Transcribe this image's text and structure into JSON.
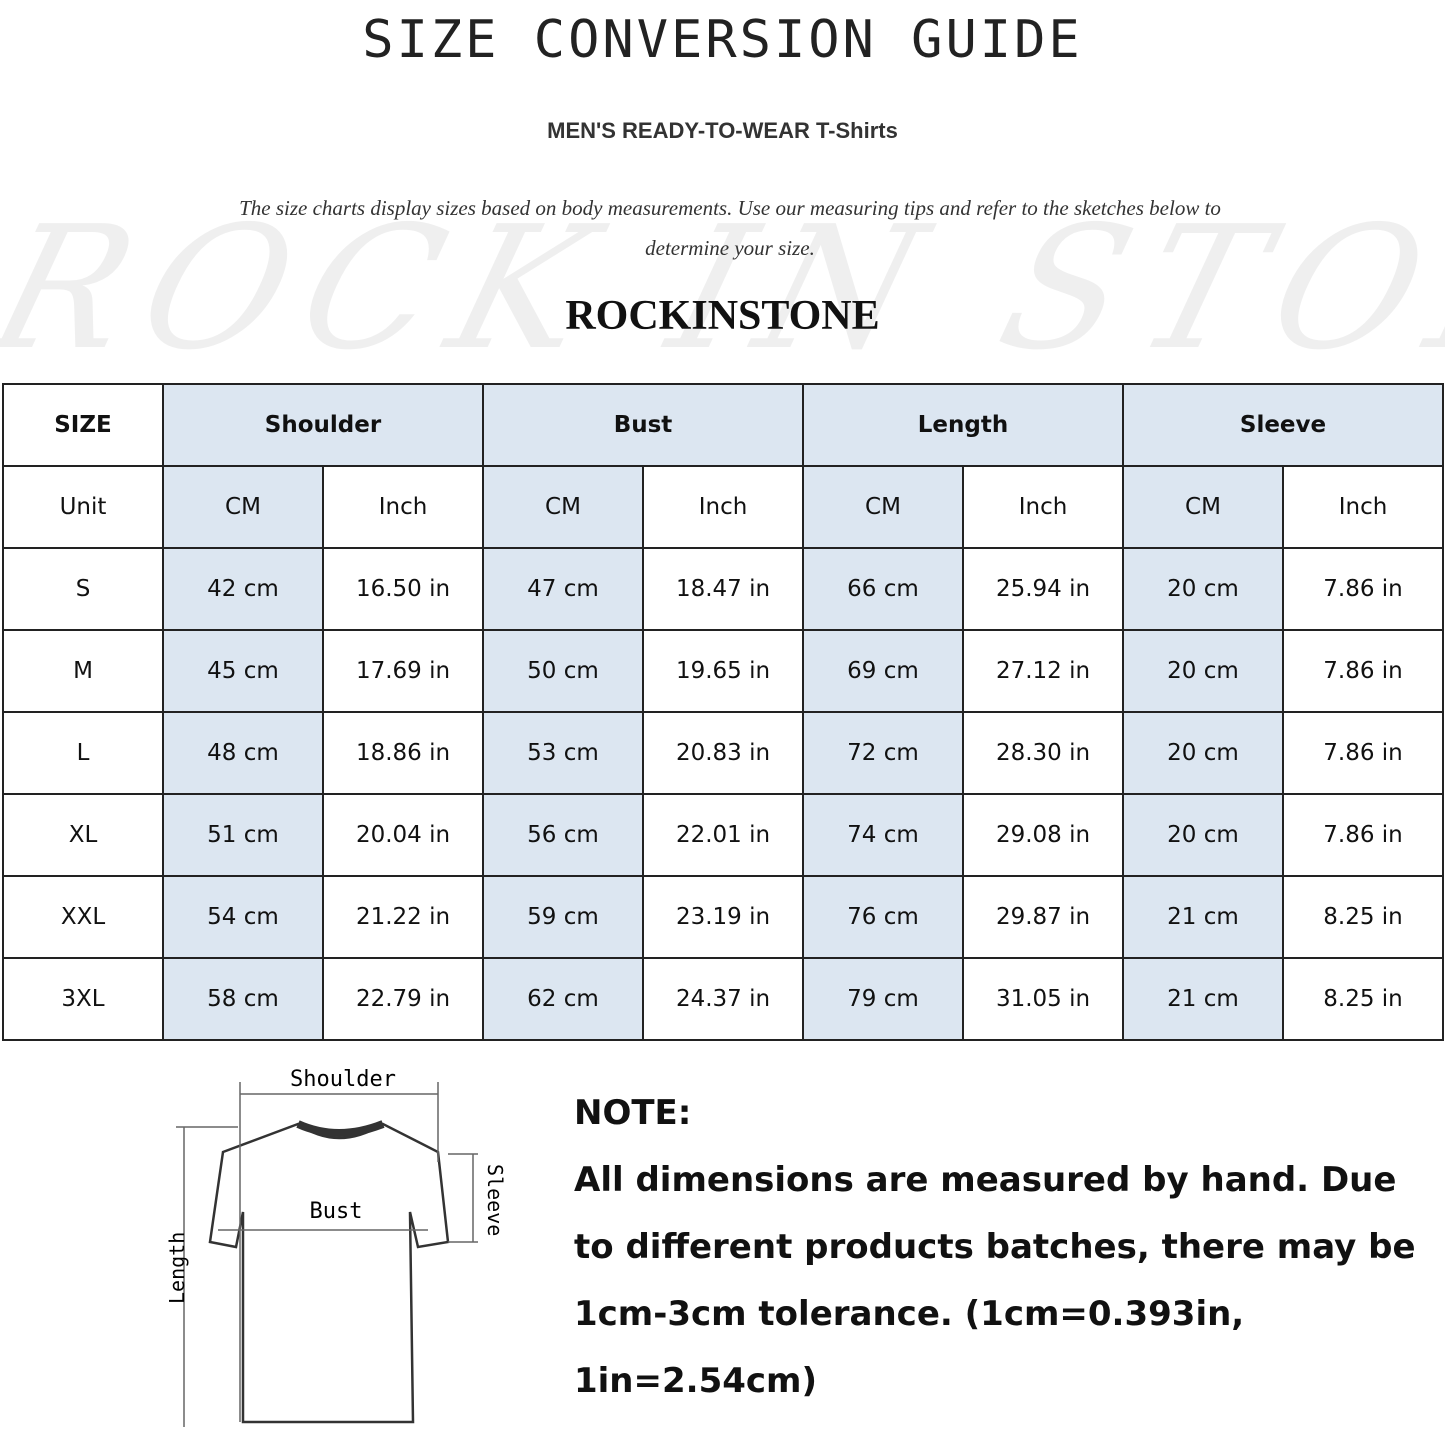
{
  "title": "SIZE CONVERSION GUIDE",
  "subtitle": "MEN'S READY-TO-WEAR T-Shirts",
  "description": "The size charts display sizes based on body measurements. Use our measuring tips and refer to the sketches below to determine your size.",
  "watermark": "ROCK IN STONE",
  "brand": "ROCKINSTONE",
  "colors": {
    "header_fill": "#dce6f1",
    "border": "#222222"
  },
  "table": {
    "size_label": "SIZE",
    "unit_label": "Unit",
    "groups": [
      "Shoulder",
      "Bust",
      "Length",
      "Sleeve"
    ],
    "units": [
      "CM",
      "Inch"
    ],
    "rows": [
      {
        "size": "S",
        "values": [
          "42 cm",
          "16.50 in",
          "47 cm",
          "18.47  in",
          "66 cm",
          "25.94  in",
          "20 cm",
          "7.86  in"
        ]
      },
      {
        "size": "M",
        "values": [
          "45 cm",
          "17.69  in",
          "50 cm",
          "19.65  in",
          "69 cm",
          "27.12  in",
          "20 cm",
          "7.86  in"
        ]
      },
      {
        "size": "L",
        "values": [
          "48 cm",
          "18.86  in",
          "53 cm",
          "20.83  in",
          "72 cm",
          "28.30  in",
          "20 cm",
          "7.86  in"
        ]
      },
      {
        "size": "XL",
        "values": [
          "51 cm",
          "20.04  in",
          "56 cm",
          "22.01  in",
          "74 cm",
          "29.08  in",
          "20 cm",
          "7.86  in"
        ]
      },
      {
        "size": "XXL",
        "values": [
          "54 cm",
          "21.22  in",
          "59 cm",
          "23.19  in",
          "76 cm",
          "29.87  in",
          "21 cm",
          "8.25  in"
        ]
      },
      {
        "size": "3XL",
        "values": [
          "58 cm",
          "22.79  in",
          "62 cm",
          "24.37  in",
          "79 cm",
          "31.05  in",
          "21 cm",
          "8.25  in"
        ]
      }
    ]
  },
  "diagram": {
    "shoulder": "Shoulder",
    "bust": "Bust",
    "sleeve": "Sleeve",
    "length": "Length"
  },
  "note": {
    "heading": "NOTE:",
    "body": "All dimensions are measured by hand. Due to different products batches, there may be 1cm-3cm tolerance. (1cm=0.393in, 1in=2.54cm)"
  }
}
